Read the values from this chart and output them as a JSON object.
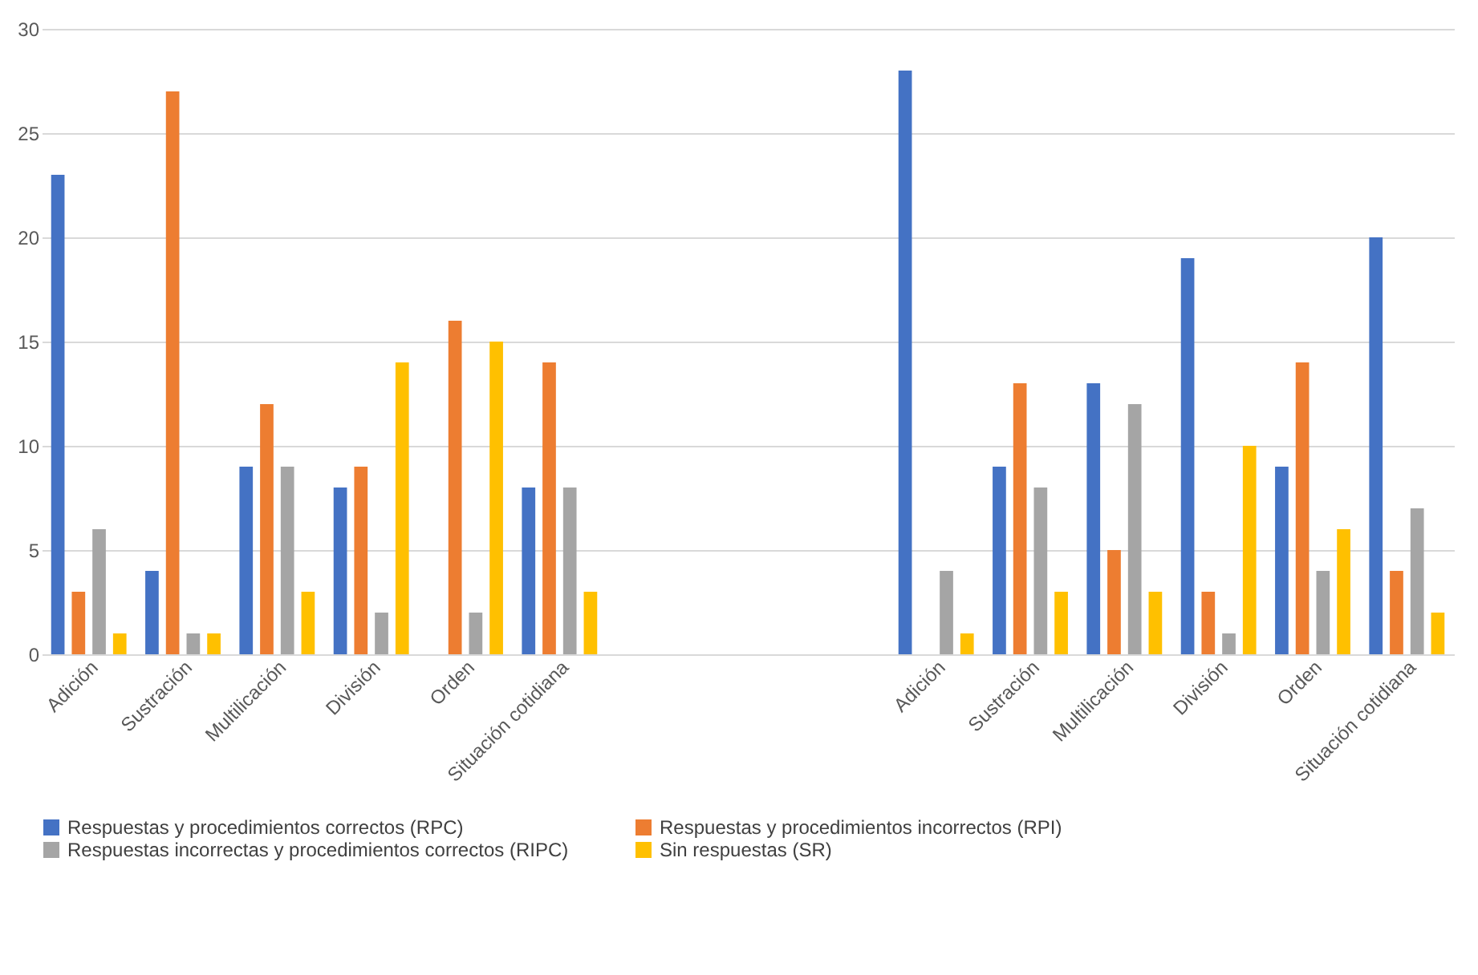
{
  "chart_data": {
    "type": "bar",
    "categories": [
      "Adición",
      "Sustración",
      "Multilicación",
      "División",
      "Orden",
      "Situación cotidiana",
      null,
      null,
      null,
      "Adición",
      "Sustración",
      "Multilicación",
      "División",
      "Orden",
      "Situación cotidiana"
    ],
    "series": [
      {
        "name": "Respuestas y procedimientos correctos (RPC)",
        "color": "#4472c4",
        "values": [
          23,
          4,
          9,
          8,
          null,
          8,
          null,
          null,
          null,
          28,
          9,
          13,
          19,
          9,
          20
        ]
      },
      {
        "name": "Respuestas y procedimientos incorrectos (RPI)",
        "color": "#ed7d31",
        "values": [
          3,
          27,
          12,
          9,
          16,
          14,
          null,
          null,
          null,
          null,
          13,
          5,
          3,
          14,
          4
        ]
      },
      {
        "name": "Respuestas incorrectas y procedimientos correctos (RIPC)",
        "color": "#a5a5a5",
        "values": [
          6,
          1,
          9,
          2,
          2,
          8,
          null,
          null,
          null,
          4,
          8,
          12,
          1,
          4,
          7
        ]
      },
      {
        "name": "Sin respuestas (SR)",
        "color": "#ffc000",
        "values": [
          1,
          1,
          3,
          14,
          15,
          3,
          null,
          null,
          null,
          1,
          3,
          3,
          10,
          6,
          2
        ]
      }
    ],
    "ylim": [
      0,
      30
    ],
    "yticks": [
      0,
      5,
      10,
      15,
      20,
      25,
      30
    ],
    "grid": "y",
    "legend": "bottom"
  }
}
